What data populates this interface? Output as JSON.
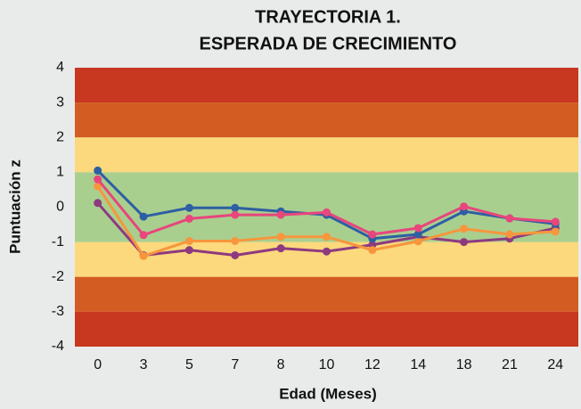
{
  "chart_data": {
    "type": "line",
    "title": [
      "TRAYECTORIA 1.",
      "ESPERADA DE CRECIMIENTO"
    ],
    "x_label": "Edad (Meses)",
    "y_label": "Puntuación z",
    "categories": [
      "0",
      "3",
      "5",
      "7",
      "8",
      "10",
      "12",
      "14",
      "18",
      "21",
      "24"
    ],
    "ylim": [
      -4,
      4
    ],
    "yticks": [
      -4,
      -3,
      -2,
      -1,
      0,
      1,
      2,
      3,
      4
    ],
    "bands": [
      {
        "from": 3,
        "to": 4,
        "color": "#c8371f"
      },
      {
        "from": 2,
        "to": 3,
        "color": "#d35c22"
      },
      {
        "from": 1,
        "to": 2,
        "color": "#fbd97c"
      },
      {
        "from": -1,
        "to": 1,
        "color": "#a9cf8f"
      },
      {
        "from": -2,
        "to": -1,
        "color": "#fbd97c"
      },
      {
        "from": -3,
        "to": -2,
        "color": "#d35c22"
      },
      {
        "from": -4,
        "to": -3,
        "color": "#c8371f"
      }
    ],
    "series": [
      {
        "color": "#8e3a80",
        "values": [
          0.12,
          -1.38,
          -1.23,
          -1.38,
          -1.18,
          -1.27,
          -1.08,
          -0.85,
          -1.0,
          -0.9,
          -0.6
        ]
      },
      {
        "color": "#f7963d",
        "values": [
          0.6,
          -1.4,
          -0.97,
          -0.97,
          -0.85,
          -0.85,
          -1.23,
          -0.98,
          -0.62,
          -0.78,
          -0.7
        ]
      },
      {
        "color": "#2e5fa3",
        "values": [
          1.05,
          -0.27,
          -0.02,
          -0.02,
          -0.12,
          -0.22,
          -0.9,
          -0.78,
          -0.12,
          -0.32,
          -0.48
        ]
      },
      {
        "color": "#e8467c",
        "values": [
          0.8,
          -0.8,
          -0.33,
          -0.22,
          -0.22,
          -0.15,
          -0.78,
          -0.6,
          0.02,
          -0.32,
          -0.42
        ]
      }
    ]
  }
}
